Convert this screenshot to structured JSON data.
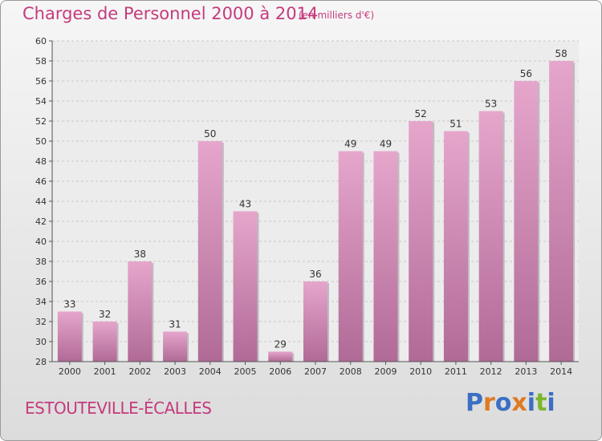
{
  "header": {
    "title": "Charges de Personnel 2000 à 2014",
    "subtitle": "(en milliers d'€)"
  },
  "footer": {
    "commune": "ESTOUTEVILLE-ÉCALLES",
    "logo_text": "Proxiti",
    "logo_letters": [
      "P",
      "r",
      "o",
      "x",
      "i",
      "t",
      "i"
    ],
    "logo_colors": [
      "#3a6fc4",
      "#e07a22",
      "#3a6fc4",
      "#e07a22",
      "#3a6fc4",
      "#7ab72d",
      "#3a6fc4"
    ]
  },
  "colors": {
    "accent": "#c43b7d",
    "bar_top": "#e6a6cc",
    "bar_bottom": "#b06a96"
  },
  "chart_data": {
    "type": "bar",
    "title": "Charges de Personnel 2000 à 2014",
    "subtitle": "(en milliers d'€)",
    "categories": [
      "2000",
      "2001",
      "2002",
      "2003",
      "2004",
      "2005",
      "2006",
      "2007",
      "2008",
      "2009",
      "2010",
      "2011",
      "2012",
      "2013",
      "2014"
    ],
    "values": [
      33,
      32,
      38,
      31,
      50,
      43,
      29,
      36,
      49,
      49,
      52,
      51,
      53,
      56,
      58
    ],
    "ylim": [
      28,
      60
    ],
    "yticks": [
      28,
      30,
      32,
      34,
      36,
      38,
      40,
      42,
      44,
      46,
      48,
      50,
      52,
      54,
      56,
      58,
      60
    ],
    "grid": true,
    "data_labels": true
  }
}
